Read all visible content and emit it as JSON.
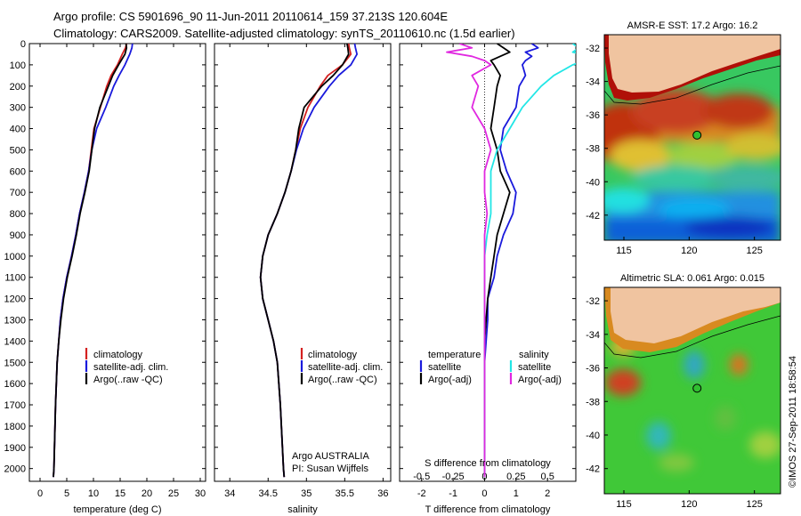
{
  "header": {
    "line1": "Argo profile: CS 5901696_90 11-Jun-2011 20110614_159 37.213S 120.604E",
    "line2": "Climatology: CARS2009. Satellite-adjusted climatology: synTS_20110610.nc (1.5d earlier)"
  },
  "footer": {
    "imos_stamp": "©IMOS 27-Sep-2011 18:58:54",
    "argo_label": "Argo AUSTRALIA",
    "pi_label": "PI: Susan Wijffels"
  },
  "colors": {
    "climatology": "#d42020",
    "satellite": "#1a1adc",
    "argo": "#000000",
    "salinity_sat": "#22e6e6",
    "salinity_argo": "#e028e0"
  },
  "chart_data": [
    {
      "type": "line",
      "title": "",
      "xlabel": "temperature (deg C)",
      "ylabel": "",
      "xlim": [
        -2,
        31
      ],
      "ylim": [
        2060,
        0
      ],
      "xticks": [
        "0",
        "5",
        "10",
        "15",
        "20",
        "25",
        "30"
      ],
      "yticks": [
        "0",
        "100",
        "200",
        "300",
        "400",
        "500",
        "600",
        "700",
        "800",
        "900",
        "1000",
        "1100",
        "1200",
        "1300",
        "1400",
        "1500",
        "1600",
        "1700",
        "1800",
        "1900",
        "2000"
      ],
      "legend": [
        "climatology",
        "satellite-adj. clim.",
        "Argo(..raw -QC)"
      ],
      "depth": [
        0,
        20,
        50,
        100,
        150,
        200,
        300,
        400,
        500,
        600,
        700,
        800,
        900,
        1000,
        1100,
        1200,
        1300,
        1400,
        1500,
        1700,
        2000,
        2040
      ],
      "series": [
        {
          "name": "climatology",
          "values": [
            16.2,
            16.0,
            15.4,
            14.5,
            13.3,
            12.5,
            11.3,
            10.1,
            9.6,
            9.1,
            8.3,
            7.4,
            6.7,
            5.9,
            5.0,
            4.3,
            3.8,
            3.5,
            3.2,
            2.9,
            2.6,
            2.5
          ]
        },
        {
          "name": "satellite-adj. clim.",
          "values": [
            17.3,
            17.2,
            16.8,
            15.9,
            14.8,
            13.8,
            12.3,
            10.6,
            9.7,
            9.1,
            8.3,
            7.4,
            6.7,
            5.9,
            5.0,
            4.3,
            3.8,
            3.5,
            3.2,
            2.9,
            2.6,
            2.5
          ]
        },
        {
          "name": "Argo(..raw -QC)",
          "values": [
            16.1,
            16.2,
            15.9,
            14.7,
            13.6,
            12.8,
            11.2,
            10.2,
            9.7,
            9.2,
            8.4,
            7.5,
            6.8,
            6.0,
            5.1,
            4.4,
            3.9,
            3.5,
            3.2,
            2.9,
            2.6,
            2.5
          ]
        }
      ]
    },
    {
      "type": "line",
      "title": "",
      "xlabel": "salinity",
      "ylabel": "",
      "xlim": [
        33.8,
        36.1
      ],
      "ylim": [
        2060,
        0
      ],
      "xticks": [
        "34",
        "34.5",
        "35",
        "35.5",
        "36"
      ],
      "legend": [
        "climatology",
        "satellite-adj. clim.",
        "Argo(..raw -QC)"
      ],
      "depth": [
        0,
        20,
        50,
        100,
        150,
        200,
        300,
        400,
        500,
        600,
        700,
        800,
        900,
        1000,
        1100,
        1200,
        1300,
        1400,
        1500,
        1700,
        2000,
        2040
      ],
      "series": [
        {
          "name": "climatology",
          "values": [
            35.55,
            35.56,
            35.58,
            35.47,
            35.28,
            35.18,
            35.02,
            34.92,
            34.86,
            34.8,
            34.72,
            34.62,
            34.5,
            34.43,
            34.4,
            34.43,
            34.5,
            34.57,
            34.62,
            34.66,
            34.7,
            34.71
          ]
        },
        {
          "name": "satellite-adj. clim.",
          "values": [
            35.63,
            35.64,
            35.66,
            35.58,
            35.42,
            35.3,
            35.1,
            34.96,
            34.87,
            34.8,
            34.72,
            34.62,
            34.5,
            34.43,
            34.4,
            34.43,
            34.5,
            34.57,
            34.62,
            34.66,
            34.7,
            34.71
          ]
        },
        {
          "name": "Argo(..raw -QC)",
          "values": [
            35.53,
            35.54,
            35.55,
            35.47,
            35.35,
            35.2,
            34.97,
            34.9,
            34.86,
            34.8,
            34.72,
            34.62,
            34.5,
            34.43,
            34.4,
            34.43,
            34.5,
            34.57,
            34.62,
            34.66,
            34.7,
            34.71
          ]
        }
      ]
    },
    {
      "type": "line",
      "title": "",
      "xlabel": "T difference from climatology",
      "xlabel2": "S difference from climatology",
      "xlim": [
        -2.7,
        2.9
      ],
      "ylim": [
        2060,
        0
      ],
      "xticks": [
        "-2",
        "-1",
        "0",
        "1",
        "2"
      ],
      "xticks2": [
        "-0.5",
        "-0.25",
        "0",
        "0.25",
        "0.5"
      ],
      "legend_titles": [
        "temperature",
        "salinity"
      ],
      "legend": [
        "satellite",
        "Argo(-adj)",
        "satellite",
        "Argo(-adj)"
      ],
      "depth": [
        0,
        20,
        40,
        60,
        80,
        100,
        150,
        200,
        300,
        400,
        500,
        600,
        700,
        800,
        900,
        1000,
        1100,
        1200,
        1300,
        1400,
        1500,
        1700,
        2000,
        2040
      ],
      "series": [
        {
          "name": "temperature satellite",
          "values": [
            1.5,
            1.7,
            1.3,
            1.5,
            1.3,
            1.2,
            1.3,
            1.1,
            1.0,
            0.6,
            0.5,
            0.7,
            1.0,
            0.9,
            0.6,
            0.4,
            0.3,
            0.1,
            0.1,
            0.05,
            0.0,
            0.0,
            0.0,
            0.0
          ]
        },
        {
          "name": "temperature Argo(-adj)",
          "values": [
            0.4,
            0.6,
            0.8,
            0.5,
            0.2,
            0.3,
            0.5,
            0.4,
            0.3,
            0.2,
            0.4,
            0.5,
            0.8,
            0.6,
            0.4,
            0.3,
            0.2,
            0.1,
            0.05,
            0.0,
            0.0,
            0.0,
            0.0,
            0.0
          ]
        },
        {
          "name": "salinity satellite",
          "values": [
            0.7,
            0.75,
            0.7,
            0.85,
            0.8,
            0.7,
            0.55,
            0.45,
            0.3,
            0.2,
            0.1,
            0.05,
            0.05,
            0.05,
            0.02,
            0.0,
            0.0,
            0.0,
            0.0,
            0.0,
            0.0,
            0.0,
            0.0,
            0.0
          ]
        },
        {
          "name": "salinity Argo(-adj)",
          "values": [
            -0.2,
            -0.1,
            -0.3,
            -0.1,
            0.0,
            0.05,
            -0.1,
            -0.05,
            -0.1,
            0.0,
            0.05,
            0.0,
            0.0,
            0.02,
            0.0,
            0.0,
            0.0,
            0.0,
            0.0,
            0.0,
            0.0,
            0.0,
            0.0,
            0.0
          ]
        }
      ]
    },
    {
      "type": "heatmap",
      "title": "AMSR-E SST: 17.2 Argo: 16.2",
      "xlim": [
        113.5,
        127
      ],
      "ylim": [
        -43.5,
        -31.2
      ],
      "xticks": [
        "115",
        "120",
        "125"
      ],
      "yticks": [
        "-32",
        "-34",
        "-36",
        "-38",
        "-40",
        "-42"
      ],
      "float_position": [
        120.604,
        -37.213
      ]
    },
    {
      "type": "heatmap",
      "title": "Altimetric SLA: 0.061 Argo: 0.015",
      "xlim": [
        113.5,
        127
      ],
      "ylim": [
        -43.5,
        -31.2
      ],
      "xticks": [
        "115",
        "120",
        "125"
      ],
      "yticks": [
        "-32",
        "-34",
        "-36",
        "-38",
        "-40",
        "-42"
      ],
      "float_position": [
        120.604,
        -37.213
      ]
    }
  ]
}
